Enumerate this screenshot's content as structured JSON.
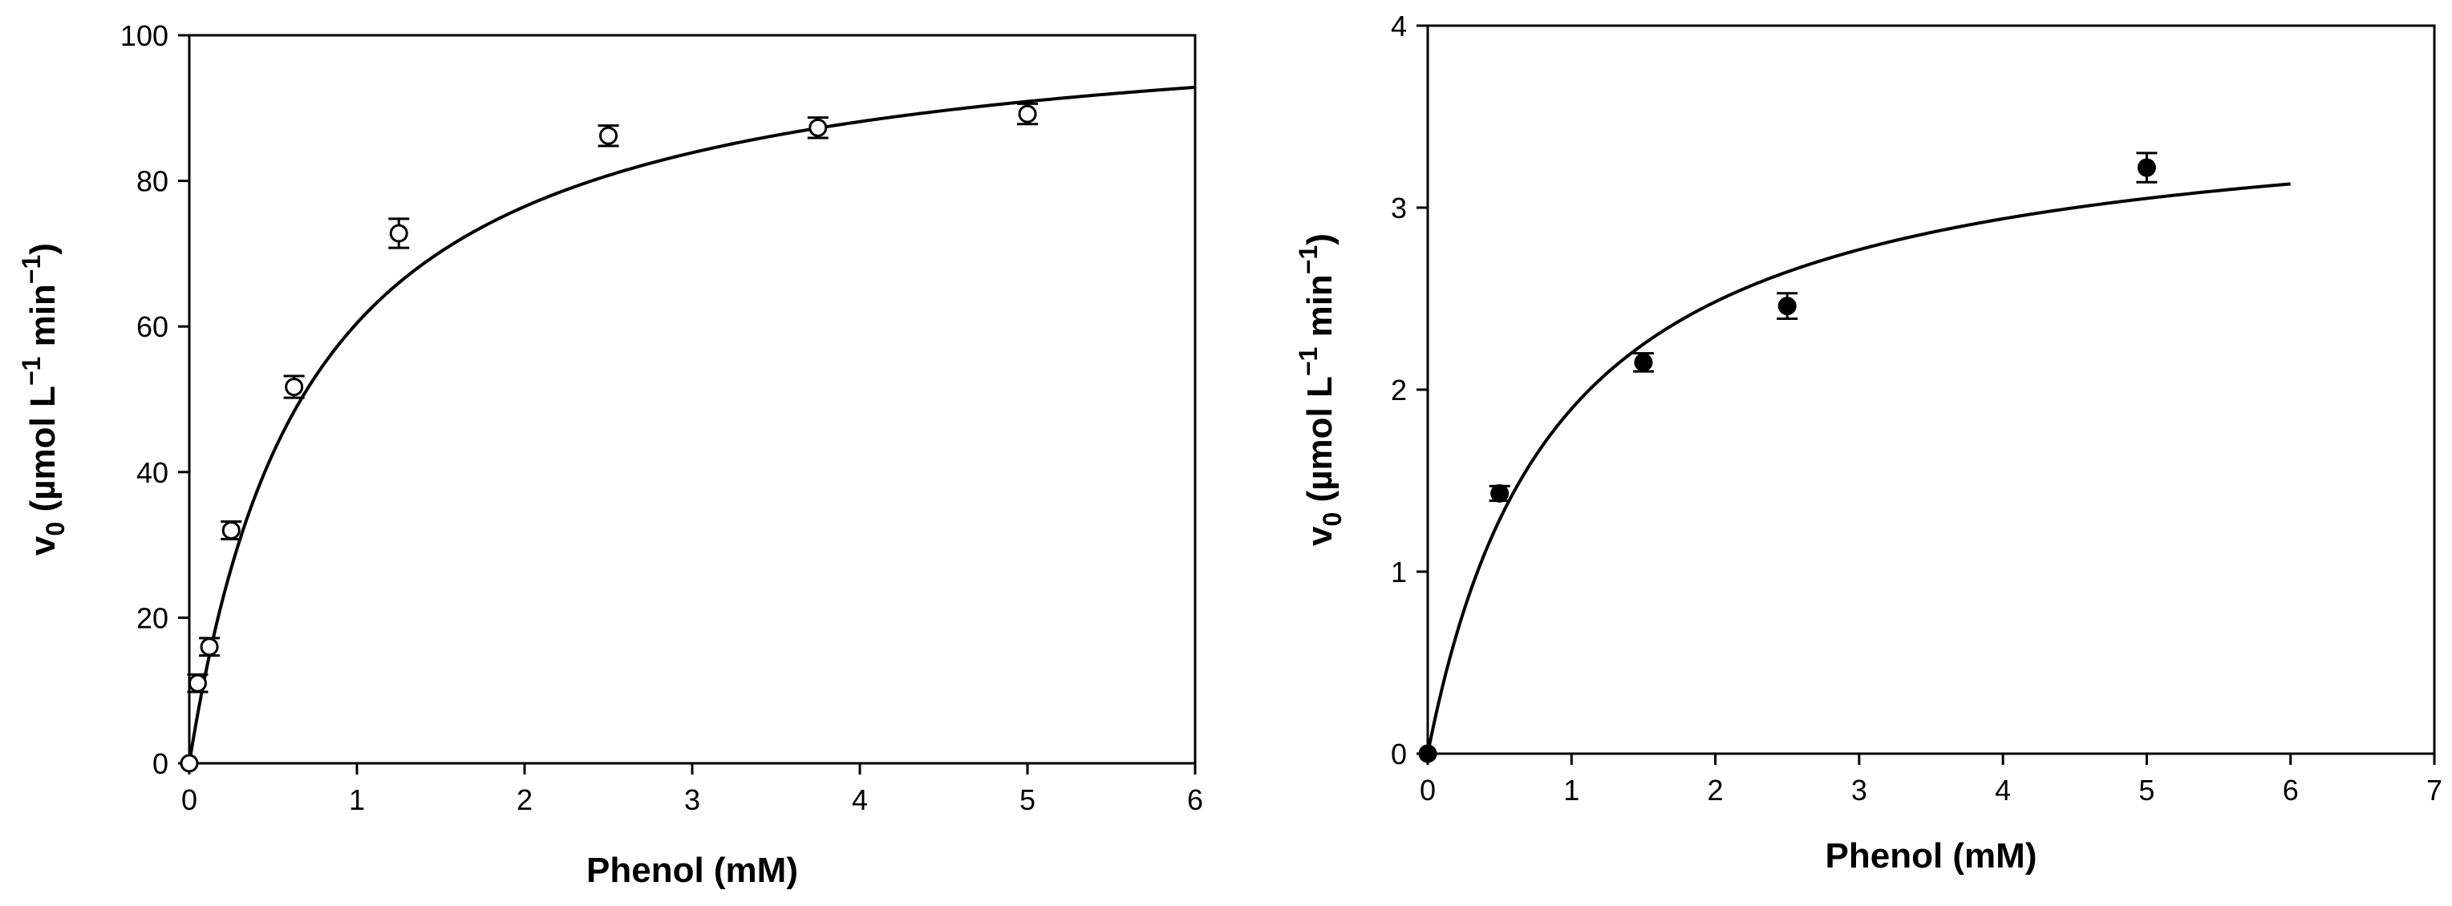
{
  "chart_data": [
    {
      "type": "scatter",
      "xlabel": "Phenol (mM)",
      "ylabel": {
        "main": "v",
        "sub": "0",
        "unit_a": " (µmol L",
        "sup_a": "−1",
        "unit_b": " min",
        "sup_b": "−1",
        "close": ")"
      },
      "xlim": [
        0,
        6
      ],
      "ylim": [
        0,
        100
      ],
      "xticks": [
        0,
        1,
        2,
        3,
        4,
        5,
        6
      ],
      "yticks": [
        0,
        20,
        40,
        60,
        80,
        100
      ],
      "grid": false,
      "legend": "none",
      "marker": "open-circle",
      "series": [
        {
          "points": [
            {
              "x": 0,
              "y": 0,
              "err": 0
            },
            {
              "x": 0.05,
              "y": 11,
              "err": 1.2
            },
            {
              "x": 0.12,
              "y": 16,
              "err": 1.2
            },
            {
              "x": 0.25,
              "y": 32,
              "err": 1.2
            },
            {
              "x": 0.625,
              "y": 51.7,
              "err": 1.5
            },
            {
              "x": 1.25,
              "y": 72.8,
              "err": 2.0
            },
            {
              "x": 2.5,
              "y": 86.2,
              "err": 1.4
            },
            {
              "x": 3.75,
              "y": 87.3,
              "err": 1.4
            },
            {
              "x": 5.0,
              "y": 89.2,
              "err": 1.4
            }
          ]
        }
      ],
      "fit": {
        "model": "michaelis-menten",
        "vmax": 104,
        "km": 0.72,
        "x_range": [
          0,
          6
        ]
      }
    },
    {
      "type": "scatter",
      "xlabel": "Phenol (mM)",
      "ylabel": {
        "main": "v",
        "sub": "0",
        "unit_a": " (µmol L",
        "sup_a": "−1",
        "unit_b": " min",
        "sup_b": "−1",
        "close": ")"
      },
      "xlim": [
        0,
        7
      ],
      "ylim": [
        0,
        4
      ],
      "xticks": [
        0,
        1,
        2,
        3,
        4,
        5,
        6,
        7
      ],
      "yticks": [
        0,
        1,
        2,
        3,
        4
      ],
      "grid": false,
      "legend": "none",
      "marker": "filled-circle",
      "series": [
        {
          "points": [
            {
              "x": 0,
              "y": 0,
              "err": 0
            },
            {
              "x": 0.5,
              "y": 1.43,
              "err": 0.04
            },
            {
              "x": 1.5,
              "y": 2.15,
              "err": 0.05
            },
            {
              "x": 2.5,
              "y": 2.46,
              "err": 0.07
            },
            {
              "x": 5.0,
              "y": 3.22,
              "err": 0.08
            }
          ]
        }
      ],
      "fit": {
        "model": "michaelis-menten",
        "vmax": 3.6,
        "km": 0.9,
        "x_range": [
          0,
          6
        ]
      }
    }
  ]
}
